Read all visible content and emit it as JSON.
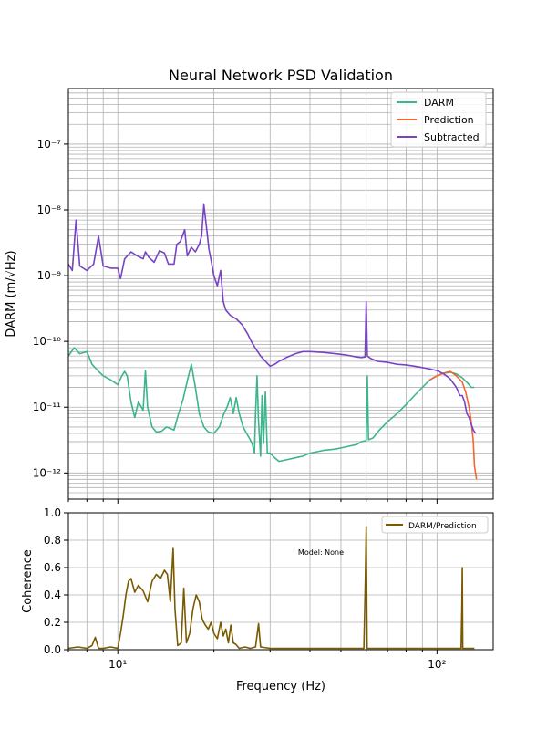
{
  "colors": {
    "darm": "#3cb48c",
    "prediction": "#f66430",
    "subtracted": "#7744c4",
    "coherence": "#7a5a00",
    "model_note": "#5b3ff0"
  },
  "chart_data": [
    {
      "type": "line",
      "title": "Neural Network PSD Validation",
      "xlabel": "",
      "ylabel": "DARM (m/√Hz)",
      "xscale": "log",
      "yscale": "log",
      "xlim": [
        7,
        150
      ],
      "ylim": [
        4e-13,
        7e-07
      ],
      "grid": true,
      "legend": "top-right",
      "yticks": [
        {
          "value": 1e-12,
          "label": "10⁻¹²"
        },
        {
          "value": 1e-11,
          "label": "10⁻¹¹"
        },
        {
          "value": 1e-10,
          "label": "10⁻¹⁰"
        },
        {
          "value": 1e-09,
          "label": "10⁻⁹"
        },
        {
          "value": 1e-08,
          "label": "10⁻⁸"
        },
        {
          "value": 1e-07,
          "label": "10⁻⁷"
        }
      ],
      "series": [
        {
          "name": "DARM",
          "points": [
            [
              7,
              6e-11
            ],
            [
              7.3,
              8e-11
            ],
            [
              7.6,
              6.5e-11
            ],
            [
              8,
              7e-11
            ],
            [
              8.3,
              4.5e-11
            ],
            [
              8.7,
              3.5e-11
            ],
            [
              9,
              3e-11
            ],
            [
              9.5,
              2.6e-11
            ],
            [
              10,
              2.2e-11
            ],
            [
              10.3,
              3e-11
            ],
            [
              10.5,
              3.5e-11
            ],
            [
              10.7,
              3e-11
            ],
            [
              11,
              1.2e-11
            ],
            [
              11.3,
              7e-12
            ],
            [
              11.6,
              1.2e-11
            ],
            [
              12,
              9e-12
            ],
            [
              12.2,
              3.6e-11
            ],
            [
              12.4,
              1e-11
            ],
            [
              12.8,
              5e-12
            ],
            [
              13.2,
              4.2e-12
            ],
            [
              13.7,
              4.3e-12
            ],
            [
              14.2,
              5e-12
            ],
            [
              15,
              4.5e-12
            ],
            [
              15.5,
              8e-12
            ],
            [
              16,
              1.3e-11
            ],
            [
              16.5,
              2.5e-11
            ],
            [
              17,
              4.5e-11
            ],
            [
              17.5,
              2e-11
            ],
            [
              18,
              8e-12
            ],
            [
              18.6,
              5e-12
            ],
            [
              19.2,
              4.2e-12
            ],
            [
              20,
              4e-12
            ],
            [
              20.8,
              5e-12
            ],
            [
              21.5,
              8e-12
            ],
            [
              22,
              1e-11
            ],
            [
              22.5,
              1.4e-11
            ],
            [
              23,
              8e-12
            ],
            [
              23.5,
              1.4e-11
            ],
            [
              24,
              8e-12
            ],
            [
              24.7,
              5e-12
            ],
            [
              25.3,
              4e-12
            ],
            [
              26,
              3.2e-12
            ],
            [
              26.4,
              2.7e-12
            ],
            [
              26.8,
              2e-12
            ],
            [
              27,
              8e-12
            ],
            [
              27.3,
              3e-11
            ],
            [
              27.6,
              6e-12
            ],
            [
              28,
              1.8e-12
            ],
            [
              28.3,
              1.5e-11
            ],
            [
              28.6,
              2.8e-12
            ],
            [
              29,
              1.7e-11
            ],
            [
              29.4,
              2e-12
            ],
            [
              30,
              2e-12
            ],
            [
              31,
              1.7e-12
            ],
            [
              32,
              1.5e-12
            ],
            [
              34,
              1.6e-12
            ],
            [
              36,
              1.7e-12
            ],
            [
              38,
              1.8e-12
            ],
            [
              40,
              2e-12
            ],
            [
              44,
              2.2e-12
            ],
            [
              48,
              2.3e-12
            ],
            [
              52,
              2.5e-12
            ],
            [
              56,
              2.7e-12
            ],
            [
              58,
              3e-12
            ],
            [
              60,
              3.1e-12
            ],
            [
              60.5,
              3e-11
            ],
            [
              61,
              3.2e-12
            ],
            [
              63,
              3.4e-12
            ],
            [
              66,
              4.5e-12
            ],
            [
              70,
              6e-12
            ],
            [
              75,
              8e-12
            ],
            [
              80,
              1.1e-11
            ],
            [
              85,
              1.5e-11
            ],
            [
              90,
              2e-11
            ],
            [
              95,
              2.6e-11
            ],
            [
              100,
              3e-11
            ],
            [
              105,
              3.3e-11
            ],
            [
              110,
              3.4e-11
            ],
            [
              115,
              3.2e-11
            ],
            [
              120,
              2.8e-11
            ],
            [
              125,
              2.3e-11
            ],
            [
              128,
              2e-11
            ],
            [
              131,
              2e-11
            ]
          ]
        },
        {
          "name": "Prediction",
          "points": [
            [
              95,
              2.6e-11
            ],
            [
              100,
              3e-11
            ],
            [
              105,
              3.3e-11
            ],
            [
              110,
              3.5e-11
            ],
            [
              115,
              3e-11
            ],
            [
              120,
              2.4e-11
            ],
            [
              123,
              1.7e-11
            ],
            [
              126,
              1e-11
            ],
            [
              128,
              6e-12
            ],
            [
              130,
              3e-12
            ],
            [
              131,
              1.3e-12
            ],
            [
              132,
              1e-12
            ],
            [
              133,
              8e-13
            ]
          ]
        },
        {
          "name": "Subtracted",
          "points": [
            [
              7,
              1.5e-09
            ],
            [
              7.2,
              1.2e-09
            ],
            [
              7.4,
              7e-09
            ],
            [
              7.6,
              1.4e-09
            ],
            [
              8,
              1.2e-09
            ],
            [
              8.4,
              1.5e-09
            ],
            [
              8.7,
              4e-09
            ],
            [
              9,
              1.4e-09
            ],
            [
              9.5,
              1.3e-09
            ],
            [
              10,
              1.3e-09
            ],
            [
              10.2,
              9e-10
            ],
            [
              10.5,
              1.8e-09
            ],
            [
              11,
              2.3e-09
            ],
            [
              11.5,
              2e-09
            ],
            [
              12,
              1.8e-09
            ],
            [
              12.2,
              2.3e-09
            ],
            [
              12.5,
              1.9e-09
            ],
            [
              13,
              1.6e-09
            ],
            [
              13.5,
              2.4e-09
            ],
            [
              14,
              2.2e-09
            ],
            [
              14.4,
              1.5e-09
            ],
            [
              15,
              1.5e-09
            ],
            [
              15.3,
              3e-09
            ],
            [
              15.7,
              3.3e-09
            ],
            [
              16.2,
              5e-09
            ],
            [
              16.5,
              2e-09
            ],
            [
              17,
              2.7e-09
            ],
            [
              17.5,
              2.3e-09
            ],
            [
              18,
              3e-09
            ],
            [
              18.3,
              4e-09
            ],
            [
              18.6,
              1.2e-08
            ],
            [
              19,
              5e-09
            ],
            [
              19.3,
              2.5e-09
            ],
            [
              19.6,
              1.7e-09
            ],
            [
              20,
              1e-09
            ],
            [
              20.5,
              7e-10
            ],
            [
              21,
              1.2e-09
            ],
            [
              21.4,
              4e-10
            ],
            [
              21.8,
              3e-10
            ],
            [
              22.5,
              2.5e-10
            ],
            [
              23.5,
              2.2e-10
            ],
            [
              24.5,
              1.8e-10
            ],
            [
              25.5,
              1.3e-10
            ],
            [
              26.2,
              1e-10
            ],
            [
              27,
              7.8e-11
            ],
            [
              28,
              6e-11
            ],
            [
              29,
              5e-11
            ],
            [
              30,
              4.2e-11
            ],
            [
              31,
              4.5e-11
            ],
            [
              32,
              5e-11
            ],
            [
              34,
              5.8e-11
            ],
            [
              36,
              6.5e-11
            ],
            [
              38,
              7e-11
            ],
            [
              40,
              7e-11
            ],
            [
              44,
              6.8e-11
            ],
            [
              48,
              6.5e-11
            ],
            [
              52,
              6.2e-11
            ],
            [
              56,
              5.8e-11
            ],
            [
              58,
              5.7e-11
            ],
            [
              59.5,
              5.8e-11
            ],
            [
              60,
              4e-10
            ],
            [
              60.5,
              6e-11
            ],
            [
              62,
              5.5e-11
            ],
            [
              65,
              5e-11
            ],
            [
              70,
              4.8e-11
            ],
            [
              75,
              4.5e-11
            ],
            [
              80,
              4.4e-11
            ],
            [
              85,
              4.2e-11
            ],
            [
              90,
              4e-11
            ],
            [
              95,
              3.8e-11
            ],
            [
              100,
              3.6e-11
            ],
            [
              105,
              3.2e-11
            ],
            [
              110,
              2.7e-11
            ],
            [
              115,
              2e-11
            ],
            [
              118,
              1.5e-11
            ],
            [
              120,
              1.5e-11
            ],
            [
              122,
              1.2e-11
            ],
            [
              124,
              8e-12
            ],
            [
              126,
              7e-12
            ],
            [
              128,
              5.5e-12
            ],
            [
              130,
              4.5e-12
            ],
            [
              132,
              4e-12
            ]
          ]
        }
      ]
    },
    {
      "type": "line",
      "title": "",
      "xlabel": "Frequency (Hz)",
      "ylabel": "Coherence",
      "xscale": "log",
      "yscale": "linear",
      "xlim": [
        7,
        150
      ],
      "ylim": [
        0,
        1.0
      ],
      "grid": true,
      "legend": "top-right",
      "xticks": [
        {
          "value": 10,
          "label": "10¹"
        },
        {
          "value": 100,
          "label": "10²"
        }
      ],
      "yticks": [
        {
          "value": 0.0,
          "label": "0.0"
        },
        {
          "value": 0.2,
          "label": "0.2"
        },
        {
          "value": 0.4,
          "label": "0.4"
        },
        {
          "value": 0.6,
          "label": "0.6"
        },
        {
          "value": 0.8,
          "label": "0.8"
        },
        {
          "value": 1.0,
          "label": "1.0"
        }
      ],
      "annotation": "Model: None",
      "series": [
        {
          "name": "DARM/Prediction",
          "points": [
            [
              7,
              0.01
            ],
            [
              7.5,
              0.02
            ],
            [
              8,
              0.01
            ],
            [
              8.3,
              0.03
            ],
            [
              8.5,
              0.09
            ],
            [
              8.7,
              0.01
            ],
            [
              9,
              0.01
            ],
            [
              9.5,
              0.02
            ],
            [
              10,
              0.01
            ],
            [
              10.2,
              0.12
            ],
            [
              10.4,
              0.25
            ],
            [
              10.6,
              0.4
            ],
            [
              10.8,
              0.5
            ],
            [
              11,
              0.52
            ],
            [
              11.3,
              0.42
            ],
            [
              11.6,
              0.47
            ],
            [
              12,
              0.43
            ],
            [
              12.4,
              0.35
            ],
            [
              12.8,
              0.5
            ],
            [
              13.2,
              0.55
            ],
            [
              13.6,
              0.52
            ],
            [
              14,
              0.58
            ],
            [
              14.3,
              0.55
            ],
            [
              14.6,
              0.35
            ],
            [
              14.9,
              0.74
            ],
            [
              15.1,
              0.3
            ],
            [
              15.4,
              0.03
            ],
            [
              15.8,
              0.05
            ],
            [
              16.1,
              0.45
            ],
            [
              16.4,
              0.05
            ],
            [
              16.8,
              0.12
            ],
            [
              17.2,
              0.3
            ],
            [
              17.6,
              0.4
            ],
            [
              18,
              0.35
            ],
            [
              18.4,
              0.22
            ],
            [
              18.8,
              0.18
            ],
            [
              19.2,
              0.15
            ],
            [
              19.6,
              0.2
            ],
            [
              20,
              0.12
            ],
            [
              20.5,
              0.08
            ],
            [
              21,
              0.2
            ],
            [
              21.4,
              0.1
            ],
            [
              21.8,
              0.15
            ],
            [
              22.2,
              0.05
            ],
            [
              22.6,
              0.18
            ],
            [
              23,
              0.05
            ],
            [
              23.4,
              0.04
            ],
            [
              24,
              0.01
            ],
            [
              25,
              0.02
            ],
            [
              26,
              0.01
            ],
            [
              27,
              0.02
            ],
            [
              27.6,
              0.19
            ],
            [
              28,
              0.02
            ],
            [
              30,
              0.01
            ],
            [
              35,
              0.01
            ],
            [
              40,
              0.01
            ],
            [
              45,
              0.01
            ],
            [
              50,
              0.01
            ],
            [
              55,
              0.01
            ],
            [
              59,
              0.01
            ],
            [
              59.6,
              0.5
            ],
            [
              60,
              0.9
            ],
            [
              60.4,
              0.01
            ],
            [
              70,
              0.01
            ],
            [
              80,
              0.01
            ],
            [
              90,
              0.01
            ],
            [
              100,
              0.01
            ],
            [
              110,
              0.01
            ],
            [
              115,
              0.01
            ],
            [
              119,
              0.01
            ],
            [
              119.6,
              0.3
            ],
            [
              120,
              0.6
            ],
            [
              120.4,
              0.01
            ],
            [
              125,
              0.01
            ],
            [
              131,
              0.01
            ]
          ]
        }
      ]
    }
  ]
}
